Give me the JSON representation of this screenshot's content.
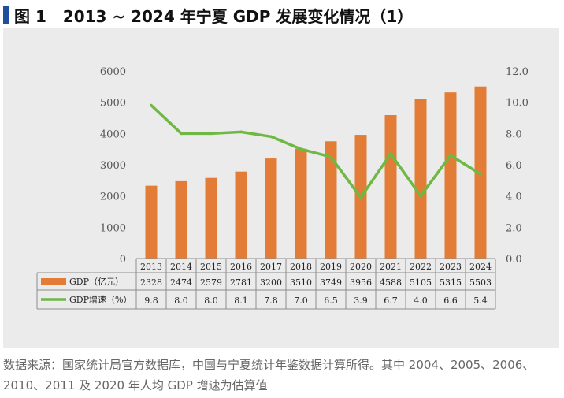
{
  "title": {
    "label": "图 1",
    "text": "2013 ~ 2024 年宁夏 GDP 发展变化情况（1）"
  },
  "colors": {
    "title_bar": "#1f4e9c",
    "bar": "#e37c36",
    "line": "#70b844",
    "panel": "#ebebeb"
  },
  "chart_data": {
    "type": "bar",
    "categories": [
      "2013",
      "2014",
      "2015",
      "2016",
      "2017",
      "2018",
      "2019",
      "2020",
      "2021",
      "2022",
      "2023",
      "2024"
    ],
    "series": [
      {
        "name": "GDP（亿元）",
        "type": "bar",
        "axis": "left",
        "values": [
          2328,
          2474,
          2579,
          2781,
          3200,
          3510,
          3749,
          3956,
          4588,
          5105,
          5315,
          5503
        ]
      },
      {
        "name": "GDP增速（%）",
        "type": "line",
        "axis": "right",
        "values": [
          9.8,
          8.0,
          8.0,
          8.1,
          7.8,
          7.0,
          6.5,
          3.9,
          6.7,
          4.0,
          6.6,
          5.4
        ]
      }
    ],
    "table_values": [
      [
        "2328",
        "2474",
        "2579",
        "2781",
        "3200",
        "3510",
        "3749",
        "3956",
        "4588",
        "5105",
        "5315",
        "5503"
      ],
      [
        "9.8",
        "8.0",
        "8.0",
        "8.1",
        "7.8",
        "7.0",
        "6.5",
        "3.9",
        "6.7",
        "4.0",
        "6.6",
        "5.4"
      ]
    ],
    "y_left": {
      "min": 0,
      "max": 6000,
      "ticks": [
        "0",
        "1000",
        "2000",
        "3000",
        "4000",
        "5000",
        "6000"
      ]
    },
    "y_right": {
      "min": 0,
      "max": 12,
      "ticks": [
        "0.0",
        "2.0",
        "4.0",
        "6.0",
        "8.0",
        "10.0",
        "12.0"
      ]
    },
    "grid": false,
    "legend": "data-table-left"
  },
  "source_note": "数据来源：国家统计局官方数据库，中国与宁夏统计年鉴数据计算所得。其中 2004、2005、2006、2010、2011 及 2020 年人均 GDP 增速为估算值"
}
